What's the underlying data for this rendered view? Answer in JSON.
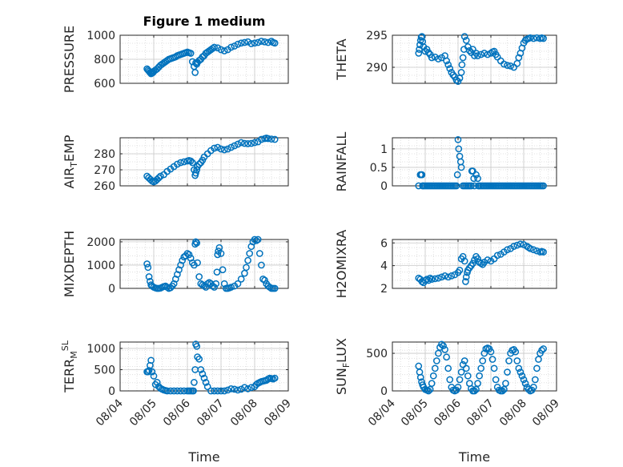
{
  "figure": {
    "title": "Figure 1 medium"
  },
  "chart_data": [
    {
      "type": "scatter",
      "ylabel": "PRESSURE",
      "ylabel_sub": "",
      "ylabel_sup": "",
      "ylabel_tail": "",
      "xlabel": "",
      "show_xticks": false,
      "title": "Figure 1 medium",
      "xlim": [
        0,
        5
      ],
      "ylim": [
        600,
        1000
      ],
      "yticks": [
        600,
        800,
        1000
      ],
      "xticks": [
        0,
        1,
        2,
        3,
        4,
        5
      ],
      "xticklabels": [
        "08/04",
        "08/05",
        "08/06",
        "08/07",
        "08/08",
        "08/09"
      ],
      "grid": true,
      "color": "#0072BD",
      "x": [
        0.8,
        0.83,
        0.86,
        0.89,
        0.92,
        0.95,
        0.98,
        1.0,
        1.05,
        1.1,
        1.15,
        1.2,
        1.25,
        1.3,
        1.35,
        1.4,
        1.45,
        1.5,
        1.55,
        1.6,
        1.65,
        1.7,
        1.75,
        1.8,
        1.85,
        1.9,
        1.95,
        2.0,
        2.05,
        2.1,
        2.15,
        2.2,
        2.23,
        2.25,
        2.28,
        2.3,
        2.35,
        2.4,
        2.45,
        2.5,
        2.55,
        2.6,
        2.65,
        2.7,
        2.75,
        2.8,
        2.9,
        3.0,
        3.1,
        3.2,
        3.3,
        3.4,
        3.5,
        3.6,
        3.7,
        3.8,
        3.9,
        4.0,
        4.1,
        4.2,
        4.3,
        4.4,
        4.5,
        4.55,
        4.6
      ],
      "y": [
        720,
        710,
        700,
        690,
        680,
        685,
        690,
        700,
        710,
        720,
        735,
        750,
        760,
        770,
        780,
        790,
        800,
        805,
        810,
        815,
        820,
        830,
        835,
        840,
        845,
        850,
        855,
        860,
        855,
        850,
        780,
        740,
        690,
        770,
        760,
        775,
        790,
        800,
        820,
        830,
        850,
        860,
        870,
        880,
        890,
        900,
        895,
        880,
        870,
        880,
        900,
        910,
        925,
        935,
        940,
        945,
        930,
        935,
        940,
        950,
        945,
        940,
        950,
        940,
        935
      ]
    },
    {
      "type": "scatter",
      "ylabel": "THETA",
      "ylabel_sub": "",
      "ylabel_sup": "",
      "ylabel_tail": "",
      "xlabel": "",
      "show_xticks": false,
      "title": "",
      "xlim": [
        0,
        5
      ],
      "ylim": [
        287.5,
        295
      ],
      "yticks": [
        290,
        295
      ],
      "xticks": [
        0,
        1,
        2,
        3,
        4,
        5
      ],
      "xticklabels": [
        "08/04",
        "08/05",
        "08/06",
        "08/07",
        "08/08",
        "08/09"
      ],
      "grid": true,
      "color": "#0072BD",
      "x": [
        0.8,
        0.82,
        0.84,
        0.86,
        0.88,
        0.9,
        0.92,
        0.95,
        1.0,
        1.05,
        1.1,
        1.15,
        1.2,
        1.3,
        1.4,
        1.5,
        1.6,
        1.65,
        1.7,
        1.75,
        1.8,
        1.85,
        1.9,
        1.95,
        2.0,
        2.05,
        2.1,
        2.12,
        2.15,
        2.18,
        2.2,
        2.25,
        2.3,
        2.35,
        2.4,
        2.45,
        2.5,
        2.55,
        2.6,
        2.7,
        2.8,
        2.9,
        3.0,
        3.05,
        3.1,
        3.15,
        3.2,
        3.3,
        3.4,
        3.5,
        3.6,
        3.7,
        3.8,
        3.85,
        3.9,
        3.95,
        4.0,
        4.05,
        4.1,
        4.15,
        4.2,
        4.3,
        4.4,
        4.5,
        4.55,
        4.6
      ],
      "y": [
        292.2,
        292.8,
        293.5,
        294.2,
        294.7,
        294.8,
        294.0,
        293.2,
        292.5,
        292.8,
        292.3,
        292.0,
        291.5,
        291.6,
        291.3,
        291.5,
        291.8,
        291.0,
        290.4,
        289.8,
        289.2,
        288.8,
        288.5,
        288.0,
        287.8,
        288.3,
        289.2,
        290.4,
        291.5,
        292.8,
        294.8,
        294.2,
        293.2,
        292.6,
        292.3,
        292.8,
        291.8,
        292.2,
        291.8,
        292.0,
        292.2,
        292.0,
        292.2,
        292.4,
        292.5,
        292.0,
        291.6,
        291.0,
        290.5,
        290.3,
        290.2,
        290.0,
        290.6,
        291.5,
        292.2,
        293.0,
        293.8,
        294.2,
        294.4,
        294.5,
        294.6,
        294.5,
        294.6,
        294.5,
        294.6,
        294.5
      ]
    },
    {
      "type": "scatter",
      "ylabel": "AIR",
      "ylabel_sub": "T",
      "ylabel_sup": "",
      "ylabel_tail": "EMP",
      "xlabel": "",
      "show_xticks": false,
      "title": "",
      "xlim": [
        0,
        5
      ],
      "ylim": [
        260,
        290
      ],
      "yticks": [
        260,
        270,
        280
      ],
      "xticks": [
        0,
        1,
        2,
        3,
        4,
        5
      ],
      "xticklabels": [
        "08/04",
        "08/05",
        "08/06",
        "08/07",
        "08/08",
        "08/09"
      ],
      "grid": true,
      "color": "#0072BD",
      "x": [
        0.8,
        0.85,
        0.9,
        0.95,
        1.0,
        1.05,
        1.1,
        1.15,
        1.2,
        1.3,
        1.4,
        1.5,
        1.6,
        1.7,
        1.8,
        1.9,
        2.0,
        2.05,
        2.1,
        2.15,
        2.2,
        2.23,
        2.25,
        2.28,
        2.3,
        2.35,
        2.4,
        2.45,
        2.5,
        2.6,
        2.7,
        2.8,
        2.9,
        3.0,
        3.1,
        3.2,
        3.3,
        3.4,
        3.5,
        3.6,
        3.7,
        3.8,
        3.9,
        4.0,
        4.1,
        4.2,
        4.3,
        4.35,
        4.4,
        4.5,
        4.6
      ],
      "y": [
        266,
        265,
        264,
        263,
        262.5,
        263,
        264,
        265,
        266,
        267,
        269,
        270.5,
        272,
        273.5,
        274.5,
        275,
        275.5,
        275.8,
        275.5,
        274.5,
        270,
        266.5,
        268,
        270,
        272,
        273.5,
        274.5,
        276,
        278,
        280,
        282,
        283.5,
        284,
        283,
        282.5,
        283,
        284,
        285,
        286,
        287,
        286.5,
        286.3,
        286.5,
        287,
        287.5,
        289,
        289.5,
        289.8,
        289.5,
        289.2,
        289
      ]
    },
    {
      "type": "scatter",
      "ylabel": "RAINFALL",
      "ylabel_sub": "",
      "ylabel_sup": "",
      "ylabel_tail": "",
      "xlabel": "",
      "show_xticks": false,
      "title": "",
      "xlim": [
        0,
        5
      ],
      "ylim": [
        0,
        1.3
      ],
      "yticks": [
        0,
        0.5,
        1
      ],
      "xticks": [
        0,
        1,
        2,
        3,
        4,
        5
      ],
      "xticklabels": [
        "08/04",
        "08/05",
        "08/06",
        "08/07",
        "08/08",
        "08/09"
      ],
      "grid": true,
      "color": "#0072BD",
      "x": [
        0.8,
        0.85,
        0.88,
        0.9,
        0.92,
        0.95,
        1.0,
        1.05,
        1.1,
        1.15,
        1.2,
        1.25,
        1.3,
        1.35,
        1.4,
        1.45,
        1.5,
        1.55,
        1.6,
        1.65,
        1.7,
        1.75,
        1.8,
        1.85,
        1.9,
        1.95,
        1.98,
        2.0,
        2.02,
        2.05,
        2.08,
        2.1,
        2.15,
        2.2,
        2.25,
        2.3,
        2.35,
        2.4,
        2.42,
        2.45,
        2.48,
        2.5,
        2.55,
        2.6,
        2.62,
        2.65,
        2.7,
        2.75,
        2.8,
        2.85,
        2.9,
        2.95,
        3.0,
        3.05,
        3.1,
        3.15,
        3.2,
        3.25,
        3.3,
        3.35,
        3.4,
        3.45,
        3.5,
        3.55,
        3.6,
        3.65,
        3.7,
        3.75,
        3.8,
        3.85,
        3.9,
        3.95,
        4.0,
        4.05,
        4.1,
        4.15,
        4.2,
        4.25,
        4.3,
        4.35,
        4.4,
        4.45,
        4.5,
        4.55,
        4.6
      ],
      "y": [
        0,
        0.3,
        0.3,
        0.3,
        0,
        0,
        0,
        0,
        0,
        0,
        0,
        0,
        0,
        0,
        0,
        0,
        0,
        0,
        0,
        0,
        0,
        0,
        0,
        0,
        0,
        0,
        0.3,
        1.25,
        1.0,
        0.8,
        0.65,
        0.5,
        0,
        0,
        0,
        0,
        0,
        0,
        0.4,
        0.4,
        0.2,
        0,
        0.3,
        0.2,
        0,
        0,
        0,
        0,
        0,
        0,
        0,
        0,
        0,
        0,
        0,
        0,
        0,
        0,
        0,
        0,
        0,
        0,
        0,
        0,
        0,
        0,
        0,
        0,
        0,
        0,
        0,
        0,
        0,
        0,
        0,
        0,
        0,
        0,
        0,
        0,
        0,
        0,
        0,
        0,
        0
      ]
    },
    {
      "type": "scatter",
      "ylabel": "MIXDEPTH",
      "ylabel_sub": "",
      "ylabel_sup": "",
      "ylabel_tail": "",
      "xlabel": "",
      "show_xticks": false,
      "title": "",
      "xlim": [
        0,
        5
      ],
      "ylim": [
        0,
        2100
      ],
      "yticks": [
        0,
        1000,
        2000
      ],
      "xticks": [
        0,
        1,
        2,
        3,
        4,
        5
      ],
      "xticklabels": [
        "08/04",
        "08/05",
        "08/06",
        "08/07",
        "08/08",
        "08/09"
      ],
      "grid": true,
      "color": "#0072BD",
      "x": [
        0.8,
        0.83,
        0.86,
        0.89,
        0.92,
        0.95,
        1.0,
        1.05,
        1.1,
        1.15,
        1.2,
        1.25,
        1.3,
        1.35,
        1.4,
        1.45,
        1.5,
        1.55,
        1.6,
        1.65,
        1.7,
        1.75,
        1.8,
        1.85,
        1.9,
        1.95,
        2.0,
        2.05,
        2.1,
        2.15,
        2.2,
        2.23,
        2.25,
        2.28,
        2.3,
        2.35,
        2.4,
        2.45,
        2.5,
        2.55,
        2.6,
        2.65,
        2.7,
        2.75,
        2.8,
        2.85,
        2.88,
        2.9,
        2.92,
        2.95,
        3.0,
        3.05,
        3.1,
        3.15,
        3.2,
        3.25,
        3.3,
        3.4,
        3.5,
        3.6,
        3.7,
        3.75,
        3.8,
        3.85,
        3.9,
        3.95,
        4.0,
        4.05,
        4.1,
        4.15,
        4.2,
        4.25,
        4.3,
        4.35,
        4.4,
        4.45,
        4.5,
        4.55,
        4.6
      ],
      "y": [
        1050,
        900,
        500,
        300,
        150,
        100,
        50,
        20,
        0,
        0,
        10,
        50,
        80,
        100,
        50,
        0,
        30,
        100,
        200,
        400,
        600,
        800,
        1000,
        1200,
        1350,
        1400,
        1500,
        1450,
        1300,
        1100,
        1000,
        1900,
        2000,
        1950,
        1100,
        500,
        200,
        150,
        100,
        50,
        200,
        250,
        200,
        100,
        50,
        200,
        700,
        1450,
        1600,
        1750,
        1500,
        800,
        200,
        0,
        0,
        20,
        50,
        100,
        200,
        400,
        650,
        900,
        1200,
        1500,
        1800,
        2000,
        2100,
        2050,
        2100,
        1500,
        1000,
        400,
        350,
        200,
        100,
        50,
        0,
        0,
        0
      ]
    },
    {
      "type": "scatter",
      "ylabel": "H2OMIXRA",
      "ylabel_sub": "",
      "ylabel_sup": "",
      "ylabel_tail": "",
      "xlabel": "",
      "show_xticks": false,
      "title": "",
      "xlim": [
        0,
        5
      ],
      "ylim": [
        2,
        6.3
      ],
      "yticks": [
        2,
        4,
        6
      ],
      "xticks": [
        0,
        1,
        2,
        3,
        4,
        5
      ],
      "xticklabels": [
        "08/04",
        "08/05",
        "08/06",
        "08/07",
        "08/08",
        "08/09"
      ],
      "grid": true,
      "color": "#0072BD",
      "x": [
        0.8,
        0.85,
        0.9,
        0.95,
        1.0,
        1.05,
        1.1,
        1.15,
        1.2,
        1.3,
        1.4,
        1.5,
        1.6,
        1.7,
        1.8,
        1.9,
        2.0,
        2.05,
        2.1,
        2.15,
        2.2,
        2.23,
        2.25,
        2.28,
        2.3,
        2.35,
        2.4,
        2.45,
        2.5,
        2.55,
        2.6,
        2.65,
        2.7,
        2.75,
        2.8,
        2.9,
        3.0,
        3.1,
        3.2,
        3.3,
        3.4,
        3.5,
        3.6,
        3.7,
        3.8,
        3.9,
        4.0,
        4.1,
        4.15,
        4.2,
        4.3,
        4.4,
        4.5,
        4.55,
        4.6
      ],
      "y": [
        2.9,
        2.8,
        2.6,
        2.5,
        2.7,
        2.8,
        2.7,
        2.9,
        2.8,
        2.85,
        2.9,
        3.0,
        3.1,
        3.0,
        3.1,
        3.2,
        3.4,
        3.6,
        4.6,
        4.8,
        4.4,
        2.6,
        3.0,
        3.4,
        3.6,
        3.8,
        4.0,
        4.2,
        4.5,
        4.8,
        4.6,
        4.3,
        4.2,
        4.1,
        4.3,
        4.5,
        4.4,
        4.6,
        4.9,
        5.0,
        5.2,
        5.4,
        5.5,
        5.7,
        5.8,
        5.9,
        5.85,
        5.7,
        5.6,
        5.5,
        5.4,
        5.3,
        5.2,
        5.25,
        5.2
      ]
    },
    {
      "type": "scatter",
      "ylabel": "TERR",
      "ylabel_sub": "M",
      "ylabel_sup": "SL",
      "ylabel_tail": "",
      "xlabel": "Time",
      "show_xticks": true,
      "title": "",
      "xlim": [
        0,
        5
      ],
      "ylim": [
        0,
        1150
      ],
      "yticks": [
        0,
        500,
        1000
      ],
      "xticks": [
        0,
        1,
        2,
        3,
        4,
        5
      ],
      "xticklabels": [
        "08/04",
        "08/05",
        "08/06",
        "08/07",
        "08/08",
        "08/09"
      ],
      "grid": true,
      "color": "#0072BD",
      "x": [
        0.8,
        0.83,
        0.86,
        0.89,
        0.92,
        0.95,
        1.0,
        1.05,
        1.1,
        1.15,
        1.2,
        1.25,
        1.3,
        1.35,
        1.4,
        1.5,
        1.6,
        1.7,
        1.8,
        1.9,
        2.0,
        2.05,
        2.1,
        2.15,
        2.18,
        2.2,
        2.23,
        2.25,
        2.28,
        2.3,
        2.35,
        2.4,
        2.45,
        2.5,
        2.55,
        2.6,
        2.7,
        2.8,
        2.9,
        3.0,
        3.1,
        3.2,
        3.3,
        3.4,
        3.5,
        3.6,
        3.7,
        3.8,
        3.9,
        4.0,
        4.05,
        4.1,
        4.15,
        4.2,
        4.25,
        4.3,
        4.35,
        4.4,
        4.45,
        4.5,
        4.55,
        4.6
      ],
      "y": [
        450,
        450,
        480,
        600,
        720,
        450,
        350,
        150,
        200,
        100,
        60,
        40,
        20,
        10,
        0,
        0,
        0,
        0,
        0,
        0,
        0,
        0,
        0,
        0,
        0,
        200,
        500,
        1100,
        1050,
        800,
        750,
        500,
        400,
        300,
        200,
        100,
        0,
        0,
        0,
        0,
        0,
        20,
        50,
        40,
        20,
        40,
        80,
        50,
        80,
        100,
        150,
        180,
        200,
        220,
        230,
        240,
        250,
        280,
        300,
        290,
        280,
        300
      ]
    },
    {
      "type": "scatter",
      "ylabel": "SUN",
      "ylabel_sub": "F",
      "ylabel_sup": "",
      "ylabel_tail": "LUX",
      "xlabel": "Time",
      "show_xticks": true,
      "title": "",
      "xlim": [
        0,
        5
      ],
      "ylim": [
        0,
        650
      ],
      "yticks": [
        0,
        500
      ],
      "xticks": [
        0,
        1,
        2,
        3,
        4,
        5
      ],
      "xticklabels": [
        "08/04",
        "08/05",
        "08/06",
        "08/07",
        "08/08",
        "08/09"
      ],
      "grid": true,
      "color": "#0072BD",
      "x": [
        0.8,
        0.83,
        0.86,
        0.89,
        0.92,
        0.95,
        1.0,
        1.05,
        1.1,
        1.15,
        1.2,
        1.25,
        1.3,
        1.35,
        1.4,
        1.45,
        1.5,
        1.55,
        1.6,
        1.65,
        1.7,
        1.75,
        1.8,
        1.85,
        1.9,
        1.95,
        2.0,
        2.05,
        2.1,
        2.15,
        2.2,
        2.25,
        2.3,
        2.35,
        2.4,
        2.45,
        2.5,
        2.55,
        2.6,
        2.65,
        2.7,
        2.75,
        2.8,
        2.85,
        2.9,
        2.95,
        3.0,
        3.05,
        3.1,
        3.15,
        3.2,
        3.25,
        3.3,
        3.35,
        3.4,
        3.45,
        3.5,
        3.55,
        3.6,
        3.65,
        3.7,
        3.75,
        3.8,
        3.85,
        3.9,
        3.95,
        4.0,
        4.05,
        4.1,
        4.15,
        4.2,
        4.25,
        4.3,
        4.35,
        4.4,
        4.45,
        4.5,
        4.55,
        4.6
      ],
      "y": [
        330,
        250,
        180,
        120,
        80,
        50,
        20,
        10,
        0,
        20,
        100,
        200,
        300,
        400,
        500,
        580,
        620,
        600,
        550,
        450,
        300,
        150,
        50,
        10,
        0,
        10,
        50,
        150,
        250,
        350,
        400,
        300,
        200,
        100,
        30,
        0,
        0,
        20,
        100,
        200,
        300,
        400,
        500,
        560,
        570,
        560,
        520,
        420,
        300,
        150,
        50,
        10,
        0,
        0,
        20,
        100,
        250,
        400,
        500,
        540,
        550,
        520,
        400,
        300,
        250,
        200,
        150,
        100,
        50,
        20,
        0,
        10,
        50,
        150,
        300,
        420,
        500,
        540,
        560
      ]
    }
  ]
}
